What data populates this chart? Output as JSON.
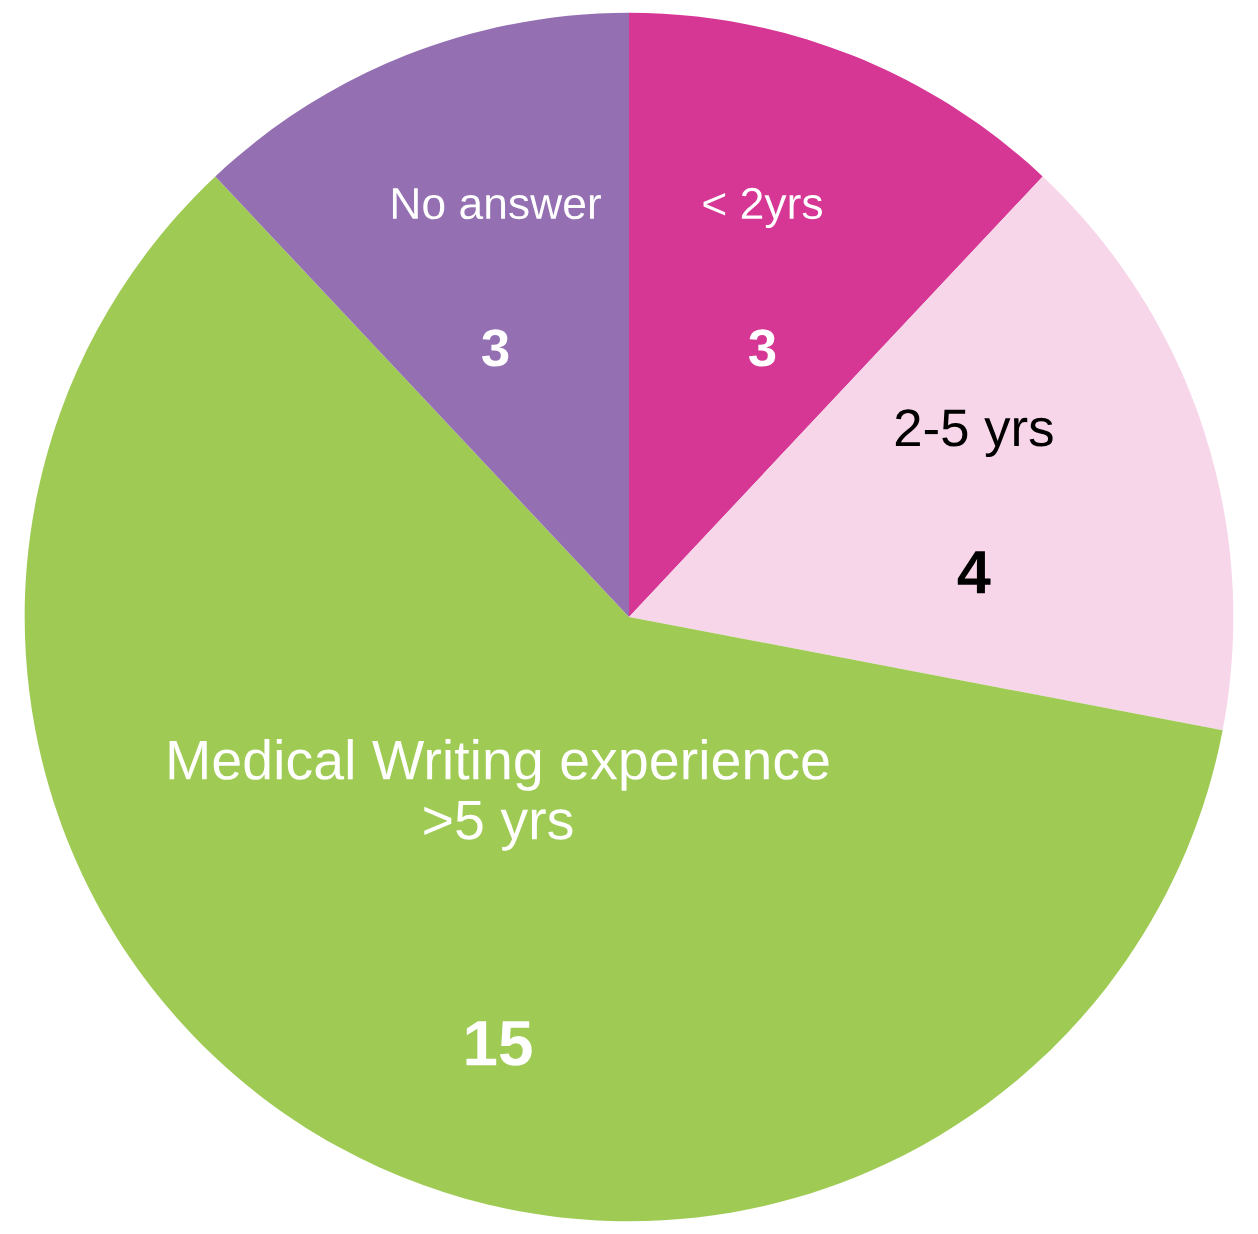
{
  "chart_data": {
    "type": "pie",
    "categories": [
      "< 2yrs",
      "2-5 yrs",
      "Medical Writing experience\n>5 yrs",
      "No answer"
    ],
    "values": [
      3,
      4,
      15,
      3
    ],
    "colors": [
      "#d63694",
      "#f7d6ea",
      "#9fcb55",
      "#9470b3"
    ],
    "data_labels": true,
    "legend": false
  }
}
